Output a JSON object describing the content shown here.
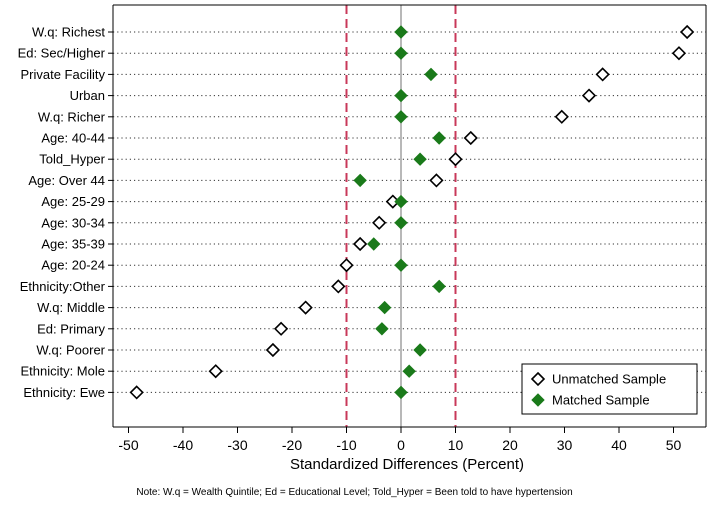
{
  "chart_data": {
    "type": "scatter",
    "orientation": "horizontal",
    "categories": [
      "W.q: Richest",
      "Ed: Sec/Higher",
      "Private Facility",
      "Urban",
      "W.q: Richer",
      "Age: 40-44",
      "Told_Hyper",
      "Age: Over 44",
      "Age: 25-29",
      "Age: 30-34",
      "Age: 35-39",
      "Age: 20-24",
      "Ethnicity:Other",
      "W.q: Middle",
      "Ed: Primary",
      "W.q: Poorer",
      "Ethnicity: Mole",
      "Ethnicity: Ewe"
    ],
    "series": [
      {
        "name": "Unmatched Sample",
        "marker": "hollow-diamond",
        "color": "#000000",
        "values": [
          52.5,
          51,
          37,
          34.5,
          29.5,
          12.8,
          10,
          6.5,
          -1.5,
          -4,
          -7.5,
          -10,
          -11.5,
          -17.5,
          -22,
          -23.5,
          -34,
          -48.5
        ]
      },
      {
        "name": "Matched Sample",
        "marker": "filled-diamond",
        "color": "#1a7a1a",
        "values": [
          0,
          0,
          5.5,
          0,
          0,
          7,
          3.5,
          -7.5,
          0,
          0,
          -5,
          0,
          7,
          -3,
          -3.5,
          3.5,
          1.5,
          0
        ]
      }
    ],
    "xlabel": "Standardized Differences (Percent)",
    "ylabel": "",
    "xlim": [
      -55,
      56
    ],
    "xticks": [
      -50,
      -40,
      -30,
      -20,
      -10,
      0,
      10,
      20,
      30,
      40,
      50
    ],
    "reference_lines": [
      {
        "value": -10,
        "color": "#c8385a",
        "style": "dashed"
      },
      {
        "value": 0,
        "color": "#9a9a9a",
        "style": "solid"
      },
      {
        "value": 10,
        "color": "#c8385a",
        "style": "dashed"
      }
    ],
    "grid": "dotted-horizontal",
    "legend_position": "bottom-right",
    "note": "Note: W.q = Wealth Quintile; Ed = Educational Level; Told_Hyper = Been told to have hypertension"
  }
}
